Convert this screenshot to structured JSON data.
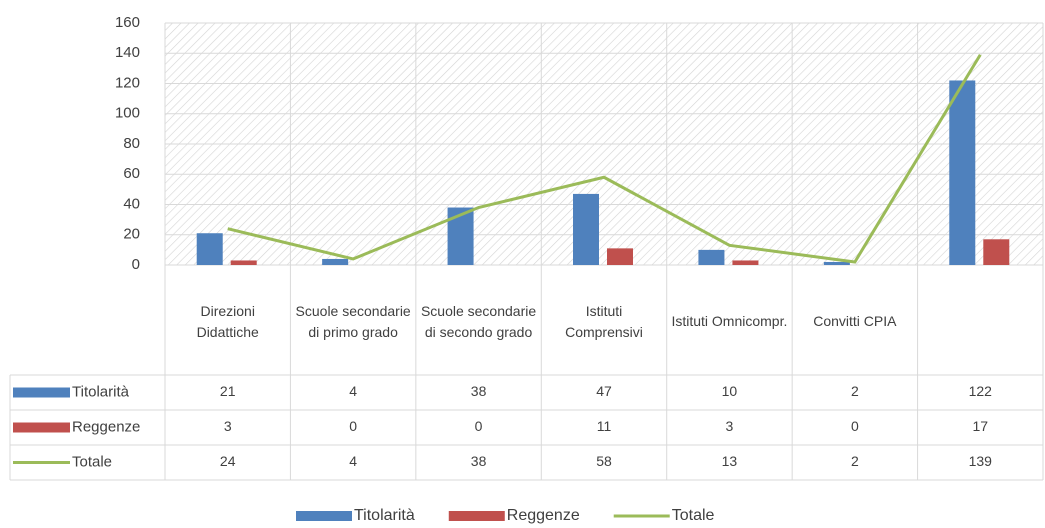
{
  "chart_data": {
    "type": "bar",
    "categories": [
      "Direzioni Didattiche",
      "Scuole secondarie di primo grado",
      "Scuole secondarie di secondo grado",
      "Istituti Comprensivi",
      "Istituti Omnicompr.",
      "Convitti CPIA",
      null
    ],
    "series": [
      {
        "name": "Titolarità",
        "color": "#4f81bd",
        "type": "bar",
        "values": [
          21,
          4,
          38,
          47,
          10,
          2,
          122
        ]
      },
      {
        "name": "Reggenze",
        "color": "#c0504d",
        "type": "bar",
        "values": [
          3,
          0,
          0,
          11,
          3,
          0,
          17
        ]
      },
      {
        "name": "Totale",
        "color": "#9bbb59",
        "type": "line",
        "values": [
          24,
          4,
          38,
          58,
          13,
          2,
          139
        ]
      }
    ],
    "ylim": [
      0,
      160
    ],
    "yticks": [
      0,
      20,
      40,
      60,
      80,
      100,
      120,
      140,
      160
    ],
    "grid": true,
    "legend": "bottom"
  }
}
